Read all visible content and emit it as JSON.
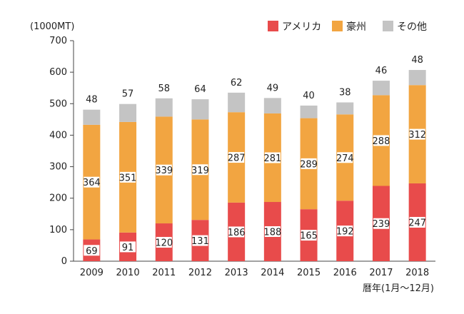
{
  "chart_data": {
    "type": "bar",
    "stacked": true,
    "ylabel": "(1000MT)",
    "xlabel": "暦年(1月〜12月)",
    "ylim": [
      0,
      700
    ],
    "yticks": [
      0,
      100,
      200,
      300,
      400,
      500,
      600,
      700
    ],
    "grid": false,
    "legend_position": "top-right",
    "categories": [
      "2009",
      "2010",
      "2011",
      "2012",
      "2013",
      "2014",
      "2015",
      "2016",
      "2017",
      "2018"
    ],
    "series": [
      {
        "name": "アメリカ",
        "color": "#e84b4b",
        "values": [
          69,
          91,
          120,
          131,
          186,
          188,
          165,
          192,
          239,
          247
        ]
      },
      {
        "name": "豪州",
        "color": "#f2a541",
        "values": [
          364,
          351,
          339,
          319,
          287,
          281,
          289,
          274,
          288,
          312
        ]
      },
      {
        "name": "その他",
        "color": "#c4c4c4",
        "values": [
          48,
          57,
          58,
          64,
          62,
          49,
          40,
          38,
          46,
          48
        ]
      }
    ]
  }
}
